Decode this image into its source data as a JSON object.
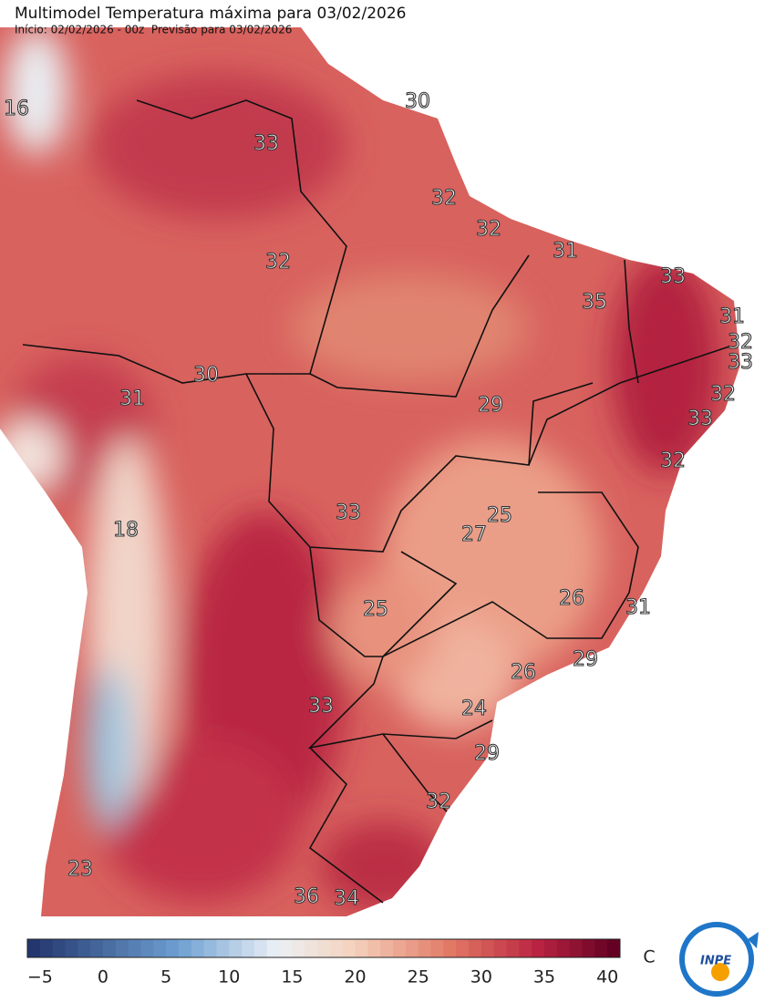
{
  "title": "Multimodel Temperatura máxima para 03/02/2026",
  "subtitle": "Início: 02/02/2026 - 00z  Previsão para 03/02/2026",
  "labels": [
    16,
    30,
    33,
    32,
    32,
    31,
    32,
    33,
    35,
    31,
    32,
    33,
    30,
    31,
    29,
    32,
    33,
    32,
    33,
    25,
    18,
    27,
    26,
    25,
    31,
    29,
    26,
    33,
    24,
    29,
    32,
    23,
    36,
    34
  ],
  "colorbar": {
    "range": [
      -6,
      41
    ],
    "ticks": [
      {
        "value": -5,
        "label": "−5"
      },
      0,
      5,
      10,
      15,
      20,
      25,
      30,
      35,
      40
    ],
    "unit": "C"
  },
  "logo": "INPE"
}
